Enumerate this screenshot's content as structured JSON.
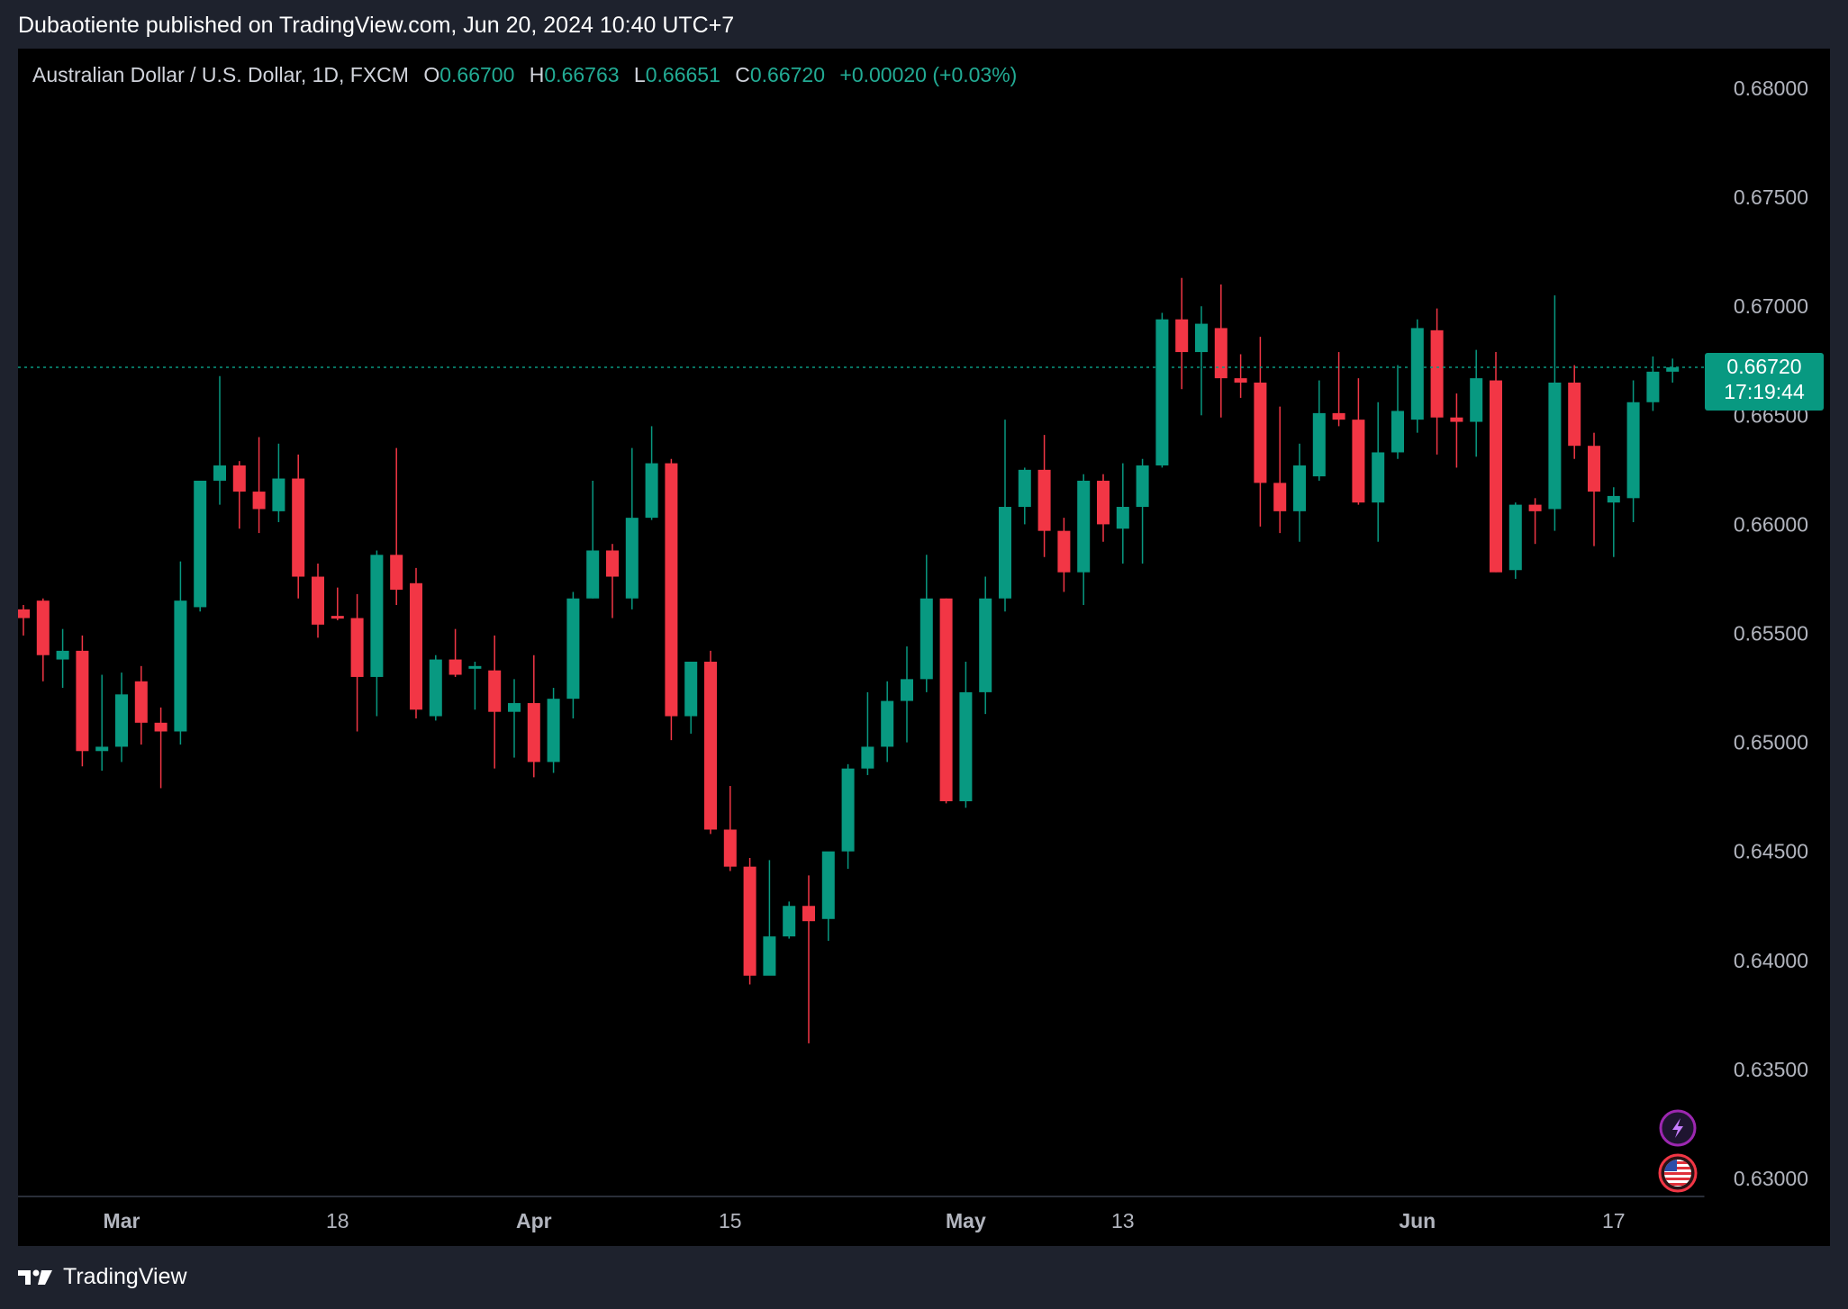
{
  "header": {
    "published": "Dubaotiente published on TradingView.com, Jun 20, 2024 10:40 UTC+7"
  },
  "legend": {
    "symbol": "Australian Dollar / U.S. Dollar, 1D, FXCM",
    "o_label": "O",
    "o_value": "0.66700",
    "h_label": "H",
    "h_value": "0.66763",
    "l_label": "L",
    "l_value": "0.66651",
    "c_label": "C",
    "c_value": "0.66720",
    "change": "+0.00020 (+0.03%)"
  },
  "price_tag": {
    "price": "0.66720",
    "countdown": "17:19:44"
  },
  "footer": {
    "brand": "TradingView"
  },
  "icons": [
    "lightning-icon",
    "us-flag-icon",
    "tradingview-logo-icon"
  ],
  "colors": {
    "up": "#089981",
    "down": "#f23645",
    "background": "#000000",
    "frame": "#1e222d",
    "axis_text": "#b2b5be",
    "price_tag": "#089981"
  },
  "chart_data": {
    "type": "candlestick",
    "title": "Australian Dollar / U.S. Dollar, 1D, FXCM",
    "xlabel": "",
    "ylabel": "",
    "ylim": [
      0.63,
      0.68
    ],
    "y_ticks": [
      "0.68000",
      "0.67500",
      "0.67000",
      "0.66500",
      "0.66000",
      "0.65500",
      "0.65000",
      "0.64500",
      "0.64000",
      "0.63500",
      "0.63000"
    ],
    "x_ticks": [
      {
        "label": "Mar",
        "bold": true,
        "index": 5
      },
      {
        "label": "18",
        "bold": false,
        "index": 16
      },
      {
        "label": "Apr",
        "bold": true,
        "index": 26
      },
      {
        "label": "15",
        "bold": false,
        "index": 36
      },
      {
        "label": "May",
        "bold": true,
        "index": 48
      },
      {
        "label": "13",
        "bold": false,
        "index": 56
      },
      {
        "label": "Jun",
        "bold": true,
        "index": 71
      },
      {
        "label": "17",
        "bold": false,
        "index": 81
      }
    ],
    "last_price": 0.6672,
    "candles": [
      [
        0.6561,
        0.6563,
        0.6549,
        0.6557
      ],
      [
        0.6565,
        0.6566,
        0.6528,
        0.654
      ],
      [
        0.6538,
        0.6552,
        0.6525,
        0.6542
      ],
      [
        0.6542,
        0.6549,
        0.6489,
        0.6496
      ],
      [
        0.6496,
        0.6531,
        0.6487,
        0.6498
      ],
      [
        0.6498,
        0.6532,
        0.6491,
        0.6522
      ],
      [
        0.6528,
        0.6535,
        0.6499,
        0.6509
      ],
      [
        0.6509,
        0.6516,
        0.6479,
        0.6505
      ],
      [
        0.6505,
        0.6583,
        0.6499,
        0.6565
      ],
      [
        0.6562,
        0.662,
        0.656,
        0.662
      ],
      [
        0.662,
        0.6668,
        0.6609,
        0.6627
      ],
      [
        0.6627,
        0.6629,
        0.6598,
        0.6615
      ],
      [
        0.6615,
        0.664,
        0.6596,
        0.6607
      ],
      [
        0.6606,
        0.6637,
        0.6601,
        0.6621
      ],
      [
        0.6621,
        0.6632,
        0.6566,
        0.6576
      ],
      [
        0.6576,
        0.6582,
        0.6548,
        0.6554
      ],
      [
        0.6558,
        0.6571,
        0.6556,
        0.6557
      ],
      [
        0.6557,
        0.6568,
        0.6505,
        0.653
      ],
      [
        0.653,
        0.6588,
        0.6512,
        0.6586
      ],
      [
        0.6586,
        0.6635,
        0.6563,
        0.657
      ],
      [
        0.6573,
        0.658,
        0.6511,
        0.6515
      ],
      [
        0.6512,
        0.654,
        0.651,
        0.6538
      ],
      [
        0.6538,
        0.6552,
        0.653,
        0.6531
      ],
      [
        0.6534,
        0.6537,
        0.6515,
        0.6535
      ],
      [
        0.6533,
        0.6549,
        0.6488,
        0.6514
      ],
      [
        0.6514,
        0.6529,
        0.6493,
        0.6518
      ],
      [
        0.6518,
        0.654,
        0.6484,
        0.6491
      ],
      [
        0.6491,
        0.6525,
        0.6486,
        0.652
      ],
      [
        0.652,
        0.6569,
        0.6511,
        0.6566
      ],
      [
        0.6566,
        0.662,
        0.6566,
        0.6588
      ],
      [
        0.6588,
        0.6591,
        0.6557,
        0.6576
      ],
      [
        0.6566,
        0.6635,
        0.6561,
        0.6603
      ],
      [
        0.6603,
        0.6645,
        0.6602,
        0.6628
      ],
      [
        0.6628,
        0.663,
        0.6501,
        0.6512
      ],
      [
        0.6512,
        0.6535,
        0.6504,
        0.6537
      ],
      [
        0.6537,
        0.6542,
        0.6458,
        0.646
      ],
      [
        0.646,
        0.648,
        0.6441,
        0.6443
      ],
      [
        0.6443,
        0.6447,
        0.6389,
        0.6393
      ],
      [
        0.6393,
        0.6446,
        0.6396,
        0.6411
      ],
      [
        0.6411,
        0.6427,
        0.641,
        0.6425
      ],
      [
        0.6425,
        0.6439,
        0.6362,
        0.6418
      ],
      [
        0.6419,
        0.6447,
        0.6409,
        0.645
      ],
      [
        0.645,
        0.649,
        0.6442,
        0.6488
      ],
      [
        0.6488,
        0.6523,
        0.6485,
        0.6498
      ],
      [
        0.6498,
        0.6528,
        0.6491,
        0.6519
      ],
      [
        0.6519,
        0.6544,
        0.65,
        0.6529
      ],
      [
        0.6529,
        0.6586,
        0.6523,
        0.6566
      ],
      [
        0.6566,
        0.6566,
        0.6472,
        0.6473
      ],
      [
        0.6473,
        0.6537,
        0.647,
        0.6523
      ],
      [
        0.6523,
        0.6576,
        0.6513,
        0.6566
      ],
      [
        0.6566,
        0.6648,
        0.656,
        0.6608
      ],
      [
        0.6608,
        0.6626,
        0.66,
        0.6625
      ],
      [
        0.6625,
        0.6641,
        0.6585,
        0.6597
      ],
      [
        0.6597,
        0.6603,
        0.6569,
        0.6578
      ],
      [
        0.6578,
        0.6623,
        0.6563,
        0.662
      ],
      [
        0.662,
        0.6623,
        0.6592,
        0.66
      ],
      [
        0.6598,
        0.6628,
        0.6582,
        0.6608
      ],
      [
        0.6608,
        0.663,
        0.6582,
        0.6627
      ],
      [
        0.6627,
        0.6697,
        0.6626,
        0.6694
      ],
      [
        0.6694,
        0.6713,
        0.6662,
        0.6679
      ],
      [
        0.6679,
        0.67,
        0.665,
        0.6692
      ],
      [
        0.669,
        0.671,
        0.6649,
        0.6667
      ],
      [
        0.6667,
        0.6678,
        0.6658,
        0.6665
      ],
      [
        0.6665,
        0.6686,
        0.6599,
        0.6619
      ],
      [
        0.6619,
        0.6654,
        0.6596,
        0.6606
      ],
      [
        0.6606,
        0.6637,
        0.6592,
        0.6627
      ],
      [
        0.6622,
        0.6666,
        0.662,
        0.6651
      ],
      [
        0.6651,
        0.6679,
        0.6645,
        0.6648
      ],
      [
        0.6648,
        0.6667,
        0.6609,
        0.661
      ],
      [
        0.661,
        0.6656,
        0.6592,
        0.6633
      ],
      [
        0.6633,
        0.6673,
        0.663,
        0.6652
      ],
      [
        0.6648,
        0.6694,
        0.6642,
        0.669
      ],
      [
        0.6689,
        0.6699,
        0.6632,
        0.6649
      ],
      [
        0.6649,
        0.666,
        0.6626,
        0.6647
      ],
      [
        0.6647,
        0.668,
        0.6631,
        0.6667
      ],
      [
        0.6666,
        0.6679,
        0.6578,
        0.6578
      ],
      [
        0.6579,
        0.661,
        0.6575,
        0.6609
      ],
      [
        0.6609,
        0.6612,
        0.6591,
        0.6606
      ],
      [
        0.6607,
        0.6705,
        0.6597,
        0.6665
      ],
      [
        0.6665,
        0.6673,
        0.663,
        0.6636
      ],
      [
        0.6636,
        0.6642,
        0.659,
        0.6615
      ],
      [
        0.661,
        0.6617,
        0.6585,
        0.6613
      ],
      [
        0.6612,
        0.6666,
        0.6601,
        0.6656
      ],
      [
        0.6656,
        0.6677,
        0.6652,
        0.667
      ],
      [
        0.667,
        0.6676,
        0.6665,
        0.6672
      ]
    ]
  }
}
